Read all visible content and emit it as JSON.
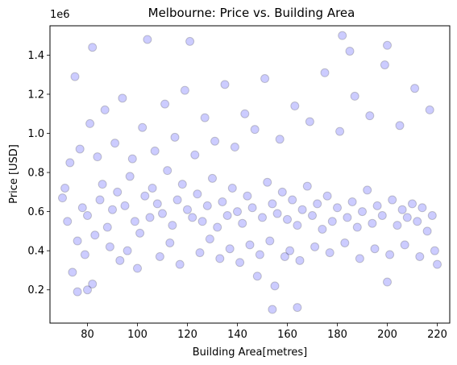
{
  "chart_data": {
    "type": "scatter",
    "title": "Melbourne: Price vs. Building Area",
    "xlabel": "Building Area[metres]",
    "ylabel": "Price [USD]",
    "y_offset_label": "1e6",
    "xlim": [
      65,
      225
    ],
    "ylim": [
      0.03,
      1.55
    ],
    "x_ticks": [
      80,
      100,
      120,
      140,
      160,
      180,
      200,
      220
    ],
    "y_ticks": [
      0.2,
      0.4,
      0.6,
      0.8,
      1.0,
      1.2,
      1.4
    ],
    "x_tick_labels": [
      "80",
      "100",
      "120",
      "140",
      "160",
      "180",
      "200",
      "220"
    ],
    "y_tick_labels": [
      "0.2",
      "0.4",
      "0.6",
      "0.8",
      "1.0",
      "1.2",
      "1.4"
    ],
    "grid": false,
    "marker_color": "#0000ff",
    "marker_edge_color": "#000000",
    "marker_alpha": 0.2,
    "series": [
      {
        "x": [
          70,
          71,
          72,
          75,
          76,
          78,
          80,
          82,
          83,
          85,
          86,
          88,
          90,
          92,
          95,
          97,
          99,
          101,
          103,
          104,
          105,
          106,
          108,
          110,
          112,
          114,
          116,
          118,
          120,
          121,
          122,
          124,
          126,
          128,
          130,
          132,
          134,
          136,
          138,
          140,
          142,
          144,
          146,
          148,
          150,
          152,
          154,
          155,
          156,
          158,
          160,
          162,
          164,
          166,
          168,
          170,
          172,
          174,
          176,
          178,
          180,
          182,
          184,
          186,
          188,
          190,
          192,
          194,
          196,
          198,
          200,
          202,
          204,
          206,
          208,
          210,
          212,
          214,
          216,
          218,
          220,
          73,
          77,
          81,
          84,
          87,
          91,
          94,
          98,
          102,
          107,
          111,
          115,
          119,
          123,
          127,
          131,
          135,
          139,
          143,
          147,
          151,
          157,
          163,
          169,
          175,
          181,
          187,
          193,
          199,
          205,
          211,
          217,
          79,
          89,
          93,
          96,
          100,
          109,
          113,
          117,
          125,
          129,
          133,
          137,
          141,
          145,
          149,
          153,
          159,
          161,
          165,
          171,
          177,
          183,
          189,
          195,
          201,
          207,
          213,
          219,
          74,
          185,
          154,
          164,
          200,
          80,
          76,
          82
        ],
        "y": [
          0.67,
          0.72,
          0.55,
          1.29,
          0.45,
          0.62,
          0.58,
          1.44,
          0.48,
          0.66,
          0.74,
          0.52,
          0.61,
          0.7,
          0.63,
          0.78,
          0.55,
          0.49,
          0.68,
          1.48,
          0.57,
          0.72,
          0.64,
          0.59,
          0.81,
          0.53,
          0.66,
          0.74,
          0.61,
          1.47,
          0.57,
          0.69,
          0.55,
          0.63,
          0.77,
          0.52,
          0.65,
          0.58,
          0.72,
          0.6,
          0.54,
          0.68,
          0.62,
          0.27,
          0.57,
          0.75,
          0.64,
          0.22,
          0.59,
          0.7,
          0.56,
          0.66,
          0.53,
          0.61,
          0.73,
          0.58,
          0.64,
          0.51,
          0.68,
          0.55,
          0.62,
          1.5,
          0.57,
          0.65,
          0.52,
          0.6,
          0.71,
          0.54,
          0.63,
          0.58,
          0.24,
          0.66,
          0.53,
          0.61,
          0.57,
          0.64,
          0.55,
          0.62,
          0.5,
          0.58,
          0.33,
          0.85,
          0.92,
          1.05,
          0.88,
          1.12,
          0.95,
          1.18,
          0.87,
          1.03,
          0.91,
          1.15,
          0.98,
          1.22,
          0.89,
          1.08,
          0.96,
          1.25,
          0.93,
          1.1,
          1.02,
          1.28,
          0.97,
          1.14,
          1.06,
          1.31,
          1.01,
          1.19,
          1.09,
          1.35,
          1.04,
          1.23,
          1.12,
          0.38,
          0.42,
          0.35,
          0.4,
          0.31,
          0.37,
          0.44,
          0.33,
          0.39,
          0.46,
          0.36,
          0.41,
          0.34,
          0.43,
          0.38,
          0.45,
          0.37,
          0.4,
          0.35,
          0.42,
          0.39,
          0.44,
          0.36,
          0.41,
          0.38,
          0.43,
          0.37,
          0.4,
          0.29,
          1.42,
          0.1,
          0.11,
          1.45,
          0.2,
          0.19,
          0.23
        ]
      }
    ]
  }
}
